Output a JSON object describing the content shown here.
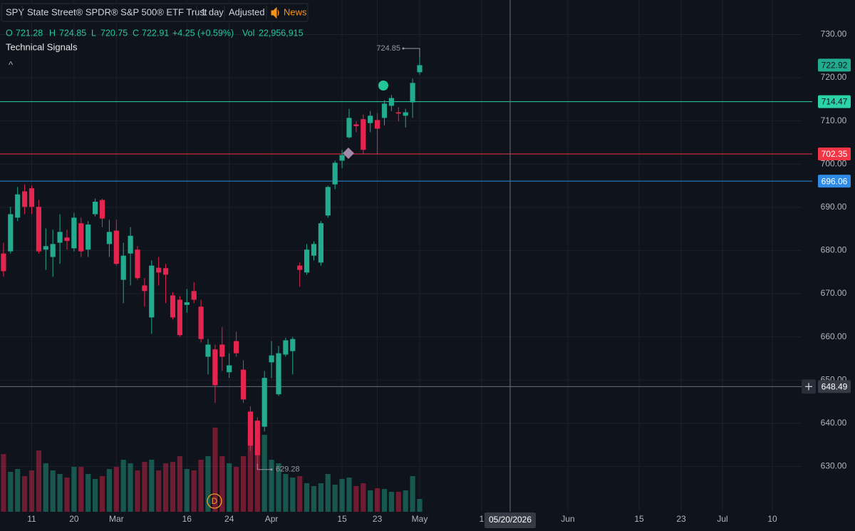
{
  "header": {
    "symbol": "SPY",
    "name": "State Street® SPDR® S&P 500® ETF Trust",
    "interval": "1 day",
    "adjustment": "Adjusted",
    "news": "News",
    "legend": {
      "o": "O",
      "h": "H",
      "l": "L",
      "c": "C",
      "change": "+4.25 (+0.59%)",
      "vol": "Vol"
    },
    "indicator": "Technical Signals",
    "collapse": "^"
  },
  "chart_data": {
    "type": "candlestick",
    "categories": [
      null,
      null,
      null,
      null,
      "11",
      null,
      null,
      null,
      null,
      null,
      "20",
      null,
      null,
      null,
      null,
      null,
      "Mar",
      null,
      null,
      null,
      null,
      null,
      null,
      null,
      null,
      null,
      "16",
      null,
      null,
      null,
      null,
      null,
      "24",
      null,
      null,
      null,
      null,
      null,
      "Apr",
      null,
      null,
      null,
      null,
      null,
      null,
      null,
      null,
      null,
      "15",
      null,
      null,
      null,
      null,
      "23",
      null,
      null,
      null,
      null,
      null,
      "May"
    ],
    "open": [
      679.3,
      679.8,
      687.6,
      693.7,
      694.4,
      690.1,
      680.2,
      678.5,
      681.8,
      683.0,
      680.5,
      686.3,
      680.2,
      688.4,
      691.7,
      681.5,
      684.6,
      673.2,
      679.3,
      680.2,
      671.9,
      664.5,
      676.0,
      675.9,
      669.6,
      668.6,
      667.4,
      670.6,
      667.0,
      655.4,
      657.1,
      658.2,
      651.8,
      659.0,
      652.4,
      642.7,
      640.6,
      639.2,
      654.1,
      646.7,
      655.9,
      656.7,
      676.5,
      674.9,
      678.8,
      677.2,
      688.1,
      695.3,
      700.8,
      706.2,
      709.2,
      710.4,
      709.5,
      710.2,
      710.7,
      713.5,
      712.0,
      711.2,
      714.3,
      721.28
    ],
    "high": [
      681.8,
      690.1,
      694.7,
      695.3,
      695.0,
      691.7,
      685.1,
      684.8,
      688.4,
      684.8,
      688.7,
      687.6,
      686.8,
      692.0,
      692.0,
      687.1,
      687.1,
      681.8,
      685.4,
      681.0,
      673.6,
      677.7,
      678.5,
      676.9,
      670.3,
      669.4,
      671.1,
      672.7,
      668.6,
      659.5,
      658.2,
      662.3,
      656.2,
      661.2,
      654.6,
      643.9,
      641.4,
      652.1,
      659.0,
      657.9,
      659.8,
      660.0,
      677.2,
      681.5,
      682.1,
      686.8,
      695.0,
      700.8,
      703.3,
      712.8,
      709.9,
      711.5,
      712.3,
      711.8,
      714.8,
      716.0,
      713.2,
      712.8,
      719.8,
      724.85
    ],
    "low": [
      673.9,
      679.3,
      686.8,
      688.4,
      688.4,
      679.3,
      675.5,
      673.9,
      676.9,
      680.2,
      679.8,
      678.5,
      678.5,
      687.9,
      685.4,
      678.5,
      676.5,
      667.8,
      671.9,
      673.2,
      667.0,
      660.7,
      671.9,
      667.8,
      664.0,
      660.0,
      665.6,
      667.8,
      658.7,
      651.3,
      644.7,
      652.1,
      650.5,
      655.4,
      644.7,
      633.6,
      629.28,
      638.1,
      650.5,
      646.3,
      655.4,
      651.3,
      671.6,
      674.4,
      677.7,
      676.5,
      687.6,
      694.2,
      699.1,
      705.9,
      707.4,
      702.4,
      707.4,
      702.4,
      709.0,
      712.3,
      709.9,
      708.5,
      710.7,
      720.75
    ],
    "close": [
      675.2,
      688.4,
      693.0,
      690.1,
      690.1,
      679.8,
      681.0,
      681.5,
      684.3,
      682.2,
      687.6,
      679.8,
      686.0,
      691.3,
      687.4,
      684.3,
      676.9,
      678.8,
      683.4,
      673.6,
      670.6,
      676.5,
      674.9,
      674.4,
      664.5,
      660.4,
      668.0,
      668.6,
      659.5,
      658.2,
      648.8,
      655.4,
      653.4,
      656.2,
      645.5,
      634.8,
      632.6,
      650.5,
      655.7,
      656.2,
      659.2,
      659.5,
      675.5,
      680.2,
      681.5,
      686.3,
      694.7,
      700.3,
      702.1,
      710.7,
      708.8,
      703.3,
      711.2,
      708.2,
      714.0,
      715.3,
      711.7,
      712.0,
      718.8,
      722.91
    ],
    "volume": [
      103300000,
      71400000,
      76500000,
      63800000,
      74000000,
      109700000,
      86700000,
      74000000,
      67600000,
      61200000,
      80300000,
      80300000,
      67600000,
      58700000,
      63800000,
      76500000,
      80300000,
      93100000,
      86700000,
      74000000,
      89300000,
      93100000,
      74000000,
      86700000,
      89300000,
      99500000,
      76500000,
      74000000,
      93100000,
      99500000,
      150500000,
      99500000,
      86700000,
      80300000,
      99500000,
      131300000,
      118600000,
      137700000,
      93100000,
      86700000,
      67600000,
      61200000,
      63800000,
      51000000,
      45900000,
      51000000,
      67600000,
      48500000,
      58700000,
      61200000,
      45900000,
      51000000,
      38300000,
      42100000,
      40800000,
      35700000,
      35700000,
      38300000,
      63800000,
      22956915
    ],
    "volume_labels": [
      null,
      null,
      null,
      null,
      null,
      null,
      null,
      null,
      null,
      null,
      null,
      null,
      null,
      null,
      null,
      null,
      null,
      null,
      null,
      null,
      null,
      null,
      null,
      null,
      null,
      null,
      null,
      null,
      null,
      null,
      null,
      null,
      null,
      null,
      null,
      null,
      null,
      null,
      null,
      null,
      null,
      null,
      null,
      null,
      null,
      null,
      null,
      null,
      null,
      null,
      null,
      null,
      null,
      null,
      null,
      null,
      null,
      null,
      null,
      "22,956,915"
    ],
    "future_labels": [
      "1",
      "Jun",
      "15",
      "23",
      "Jul",
      "10"
    ],
    "up_color": "#22ab8e",
    "down_color": "#e5254f",
    "ylim": [
      619.5,
      738
    ],
    "yticks": [
      {
        "value": 630,
        "label": "630.00"
      },
      {
        "value": 640,
        "label": "640.00"
      },
      {
        "value": 650,
        "label": "650.00"
      },
      {
        "value": 660,
        "label": "660.00"
      },
      {
        "value": 670,
        "label": "670.00"
      },
      {
        "value": 680,
        "label": "680.00"
      },
      {
        "value": 690,
        "label": "690.00"
      },
      {
        "value": 700,
        "label": "700.00"
      },
      {
        "value": 710,
        "label": "710.00"
      },
      {
        "value": 720,
        "label": "720.00"
      },
      {
        "value": 730,
        "label": "730.00"
      }
    ],
    "grid": true,
    "price_lines": [
      {
        "value": 714.47,
        "color": "#2ad3a8"
      },
      {
        "value": 702.35,
        "color": "#f23645"
      },
      {
        "value": 696.06,
        "color": "#2f8be6"
      }
    ],
    "last_price": 722.92,
    "crosshair": {
      "price": 648.49,
      "date": "05/20/2026"
    },
    "dividend_marker": "D"
  }
}
